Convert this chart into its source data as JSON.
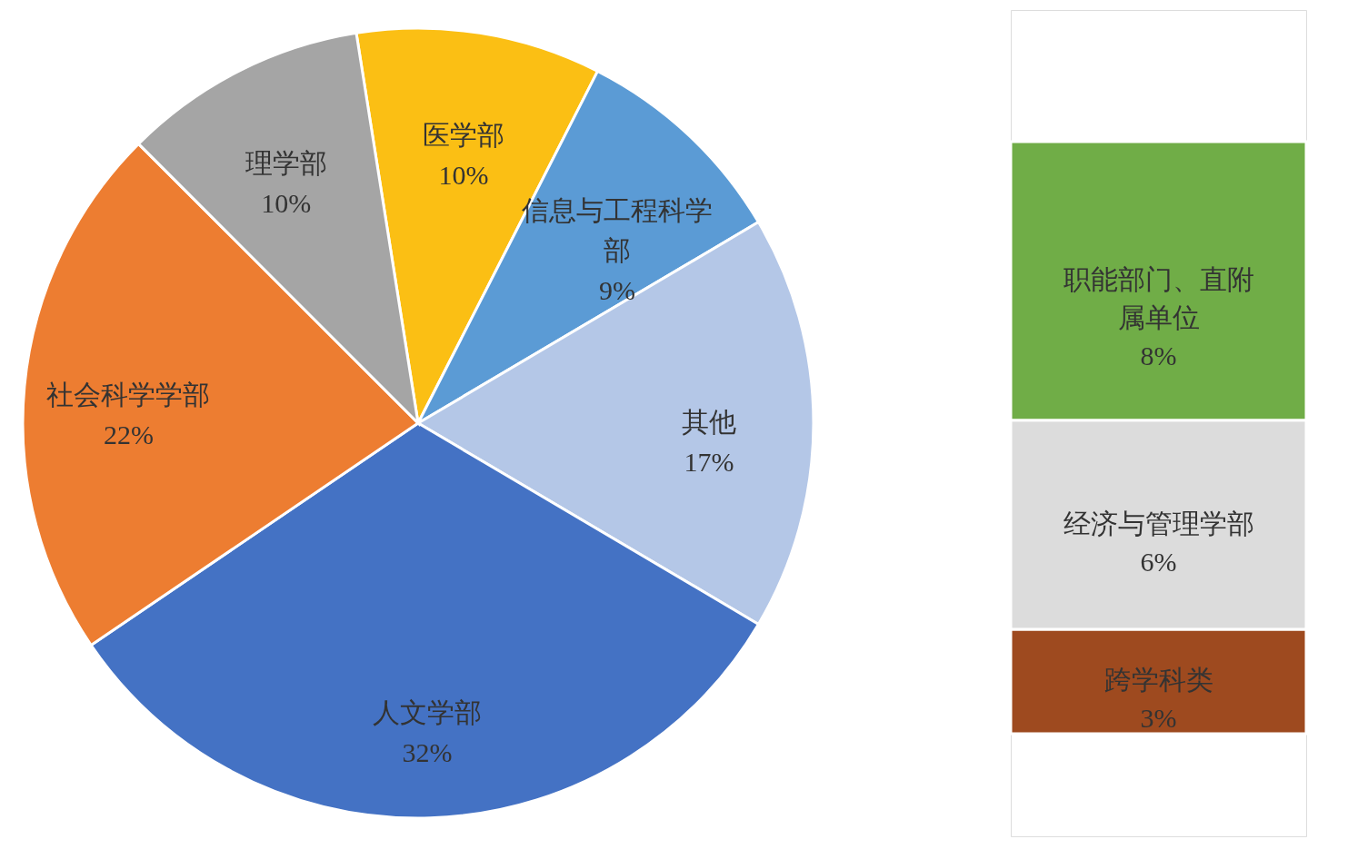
{
  "chart_data": [
    {
      "type": "pie",
      "categories": [
        "医学部",
        "信息与工程科学部",
        "其他",
        "人文学部",
        "社会科学学部",
        "理学部"
      ],
      "values": [
        10,
        9,
        17,
        32,
        22,
        10
      ],
      "colors": [
        "#fbbf14",
        "#5b9bd5",
        "#b4c7e7",
        "#4472c4",
        "#ed7d31",
        "#a5a5a5"
      ],
      "value_labels": [
        "10%",
        "9%",
        "17%",
        "32%",
        "22%",
        "10%"
      ],
      "legend": false
    },
    {
      "type": "bar",
      "stacked": true,
      "categories": [
        null
      ],
      "legend": false,
      "series": [
        {
          "name": "跨学科类",
          "color": "#9e4a1f",
          "values": [
            3
          ],
          "value_labels": [
            "3%"
          ]
        },
        {
          "name": "经济与管理学部",
          "color": "#dcdcdc",
          "values": [
            6
          ],
          "value_labels": [
            "6%"
          ]
        },
        {
          "name": "职能部门、直附属单位",
          "color": "#70ad47",
          "values": [
            8
          ],
          "value_labels": [
            "8%"
          ]
        }
      ]
    }
  ]
}
